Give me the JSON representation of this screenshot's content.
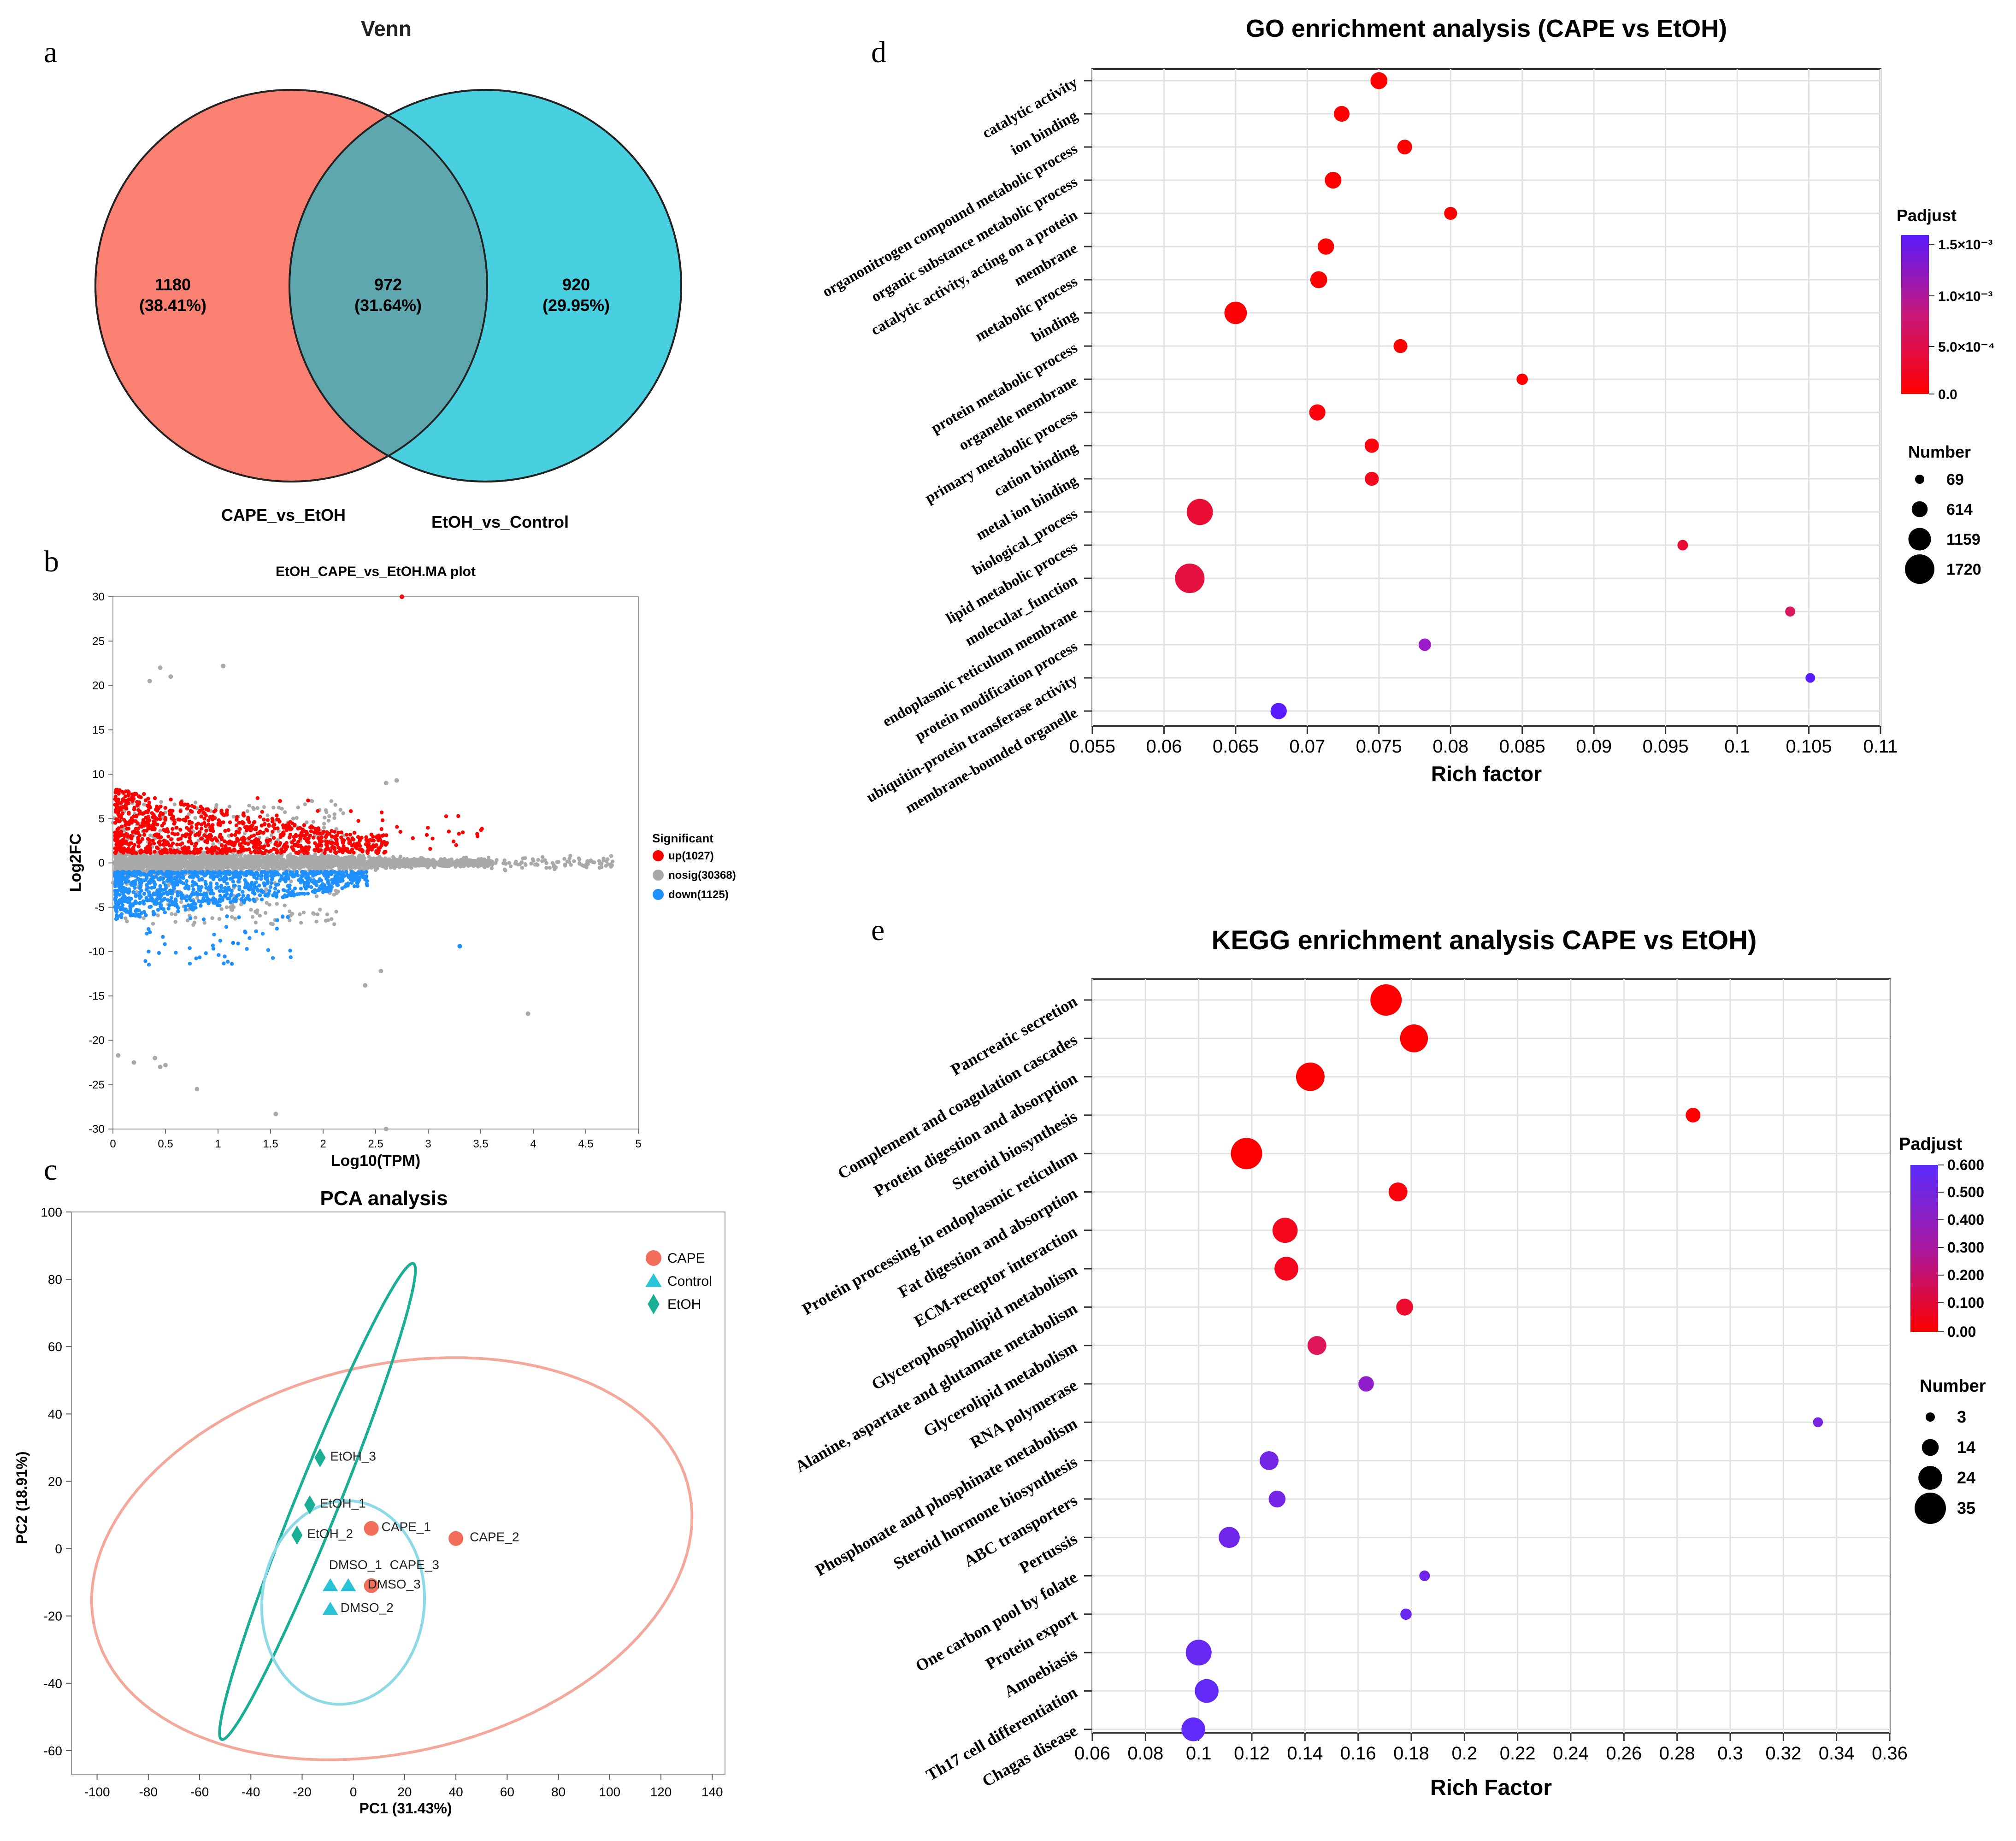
{
  "panels": {
    "a": "a",
    "b": "b",
    "c": "c",
    "d": "d",
    "e": "e"
  },
  "chart_data": [
    {
      "id": "venn",
      "type": "venn",
      "title": "Venn",
      "sets": [
        {
          "name": "CAPE_vs_EtOH",
          "color": "#FA8072"
        },
        {
          "name": "EtOH_vs_Control",
          "color": "#48CFE0"
        }
      ],
      "regions": [
        {
          "count": "1180",
          "percent": "(38.41%)"
        },
        {
          "count": "972",
          "percent": "(31.64%)"
        },
        {
          "count": "920",
          "percent": "(29.95%)"
        }
      ]
    },
    {
      "id": "ma",
      "type": "scatter",
      "title": "EtOH_CAPE_vs_EtOH.MA plot",
      "xlabel": "Log10(TPM)",
      "ylabel": "Log2FC",
      "xlim": [
        0,
        5
      ],
      "ylim": [
        -30,
        30
      ],
      "xticks": [
        "0",
        "0.5",
        "1",
        "1.5",
        "2",
        "2.5",
        "3",
        "3.5",
        "4",
        "4.5",
        "5"
      ],
      "yticks": [
        "30",
        "25",
        "20",
        "15",
        "10",
        "5",
        "0",
        "-5",
        "-10",
        "-15",
        "-20",
        "-25",
        "-30"
      ],
      "legend_title": "Significant",
      "legend": [
        {
          "label": "up(1027)",
          "color": "#FF0000"
        },
        {
          "label": "nosig(30368)",
          "color": "#A9A9A9"
        },
        {
          "label": "down(1125)",
          "color": "#1E90FF"
        }
      ],
      "outliers": [
        {
          "x": 2.75,
          "y": 30,
          "g": "up"
        },
        {
          "x": 0.45,
          "y": 22,
          "g": "nosig"
        },
        {
          "x": 0.55,
          "y": 21,
          "g": "nosig"
        },
        {
          "x": 0.35,
          "y": 20.5,
          "g": "nosig"
        },
        {
          "x": 1.05,
          "y": 22.2,
          "g": "nosig"
        },
        {
          "x": 0.05,
          "y": -21.7,
          "g": "nosig"
        },
        {
          "x": 0.2,
          "y": -22.5,
          "g": "nosig"
        },
        {
          "x": 0.45,
          "y": -23,
          "g": "nosig"
        },
        {
          "x": 0.4,
          "y": -22,
          "g": "nosig"
        },
        {
          "x": 0.5,
          "y": -22.8,
          "g": "nosig"
        },
        {
          "x": 0.8,
          "y": -25.5,
          "g": "nosig"
        },
        {
          "x": 1.55,
          "y": -28.3,
          "g": "nosig"
        },
        {
          "x": 2.6,
          "y": -30,
          "g": "nosig"
        },
        {
          "x": 3.95,
          "y": -17,
          "g": "nosig"
        },
        {
          "x": 2.55,
          "y": -12.2,
          "g": "nosig"
        },
        {
          "x": 2.4,
          "y": -13.8,
          "g": "nosig"
        },
        {
          "x": 2.7,
          "y": 9.3,
          "g": "nosig"
        },
        {
          "x": 2.6,
          "y": 9,
          "g": "nosig"
        },
        {
          "x": 3.3,
          "y": -9.4,
          "g": "down"
        }
      ]
    },
    {
      "id": "pca",
      "type": "scatter",
      "title": "PCA analysis",
      "xlabel": "PC1 (31.43%)",
      "ylabel": "PC2 (18.91%)",
      "xlim": [
        -110,
        145
      ],
      "ylim": [
        -67,
        100
      ],
      "xticks": [
        -100,
        -80,
        -60,
        -40,
        -20,
        0,
        20,
        40,
        60,
        80,
        100,
        120,
        140
      ],
      "yticks": [
        -60,
        -40,
        -20,
        0,
        20,
        40,
        60,
        80,
        100
      ],
      "legend": [
        {
          "label": "CAPE",
          "color": "#F26E5A",
          "shape": "circle"
        },
        {
          "label": "Control",
          "color": "#29C4D8",
          "shape": "triangle"
        },
        {
          "label": "EtOH",
          "color": "#1AAE94",
          "shape": "diamond"
        }
      ],
      "points": [
        {
          "label": "EtOH_3",
          "x": -13,
          "y": 27,
          "group": "EtOH"
        },
        {
          "label": "EtOH_1",
          "x": -17,
          "y": 13,
          "group": "EtOH"
        },
        {
          "label": "EtOH_2",
          "x": -22,
          "y": 4,
          "group": "EtOH"
        },
        {
          "label": "CAPE_1",
          "x": 7,
          "y": 6,
          "group": "CAPE"
        },
        {
          "label": "CAPE_2",
          "x": 40,
          "y": 3,
          "group": "CAPE"
        },
        {
          "label": "CAPE_3",
          "x": 7,
          "y": -11,
          "group": "CAPE"
        },
        {
          "label": "DMSO_1",
          "x": -9,
          "y": -11,
          "group": "Control"
        },
        {
          "label": "DMSO_3",
          "x": -2,
          "y": -11,
          "group": "Control"
        },
        {
          "label": "DMSO_2",
          "x": -9,
          "y": -18,
          "group": "Control"
        }
      ]
    },
    {
      "id": "go",
      "type": "scatter",
      "title": "GO enrichment analysis (CAPE vs EtOH)",
      "xlabel": "Rich factor",
      "xlim": [
        0.055,
        0.11
      ],
      "xticks": [
        "0.055",
        "0.06",
        "0.065",
        "0.07",
        "0.075",
        "0.08",
        "0.085",
        "0.09",
        "0.095",
        "0.1",
        "0.105",
        "0.11"
      ],
      "color_title": "Padjust",
      "color_ticks": [
        "1.5×10⁻³",
        "1.0×10⁻³",
        "5.0×10⁻⁴",
        "0.0"
      ],
      "size_title": "Number",
      "size_ticks": [
        "69",
        "614",
        "1159",
        "1720"
      ],
      "terms": [
        {
          "label": "catalytic activity",
          "x": 0.075,
          "n": 700,
          "p": 0.0
        },
        {
          "label": "ion binding",
          "x": 0.0724,
          "n": 600,
          "p": 0.0
        },
        {
          "label": "organonitrogen compound metabolic process",
          "x": 0.0768,
          "n": 520,
          "p": 0.0
        },
        {
          "label": "organic substance metabolic process",
          "x": 0.0718,
          "n": 680,
          "p": 0.0
        },
        {
          "label": "catalytic activity, acting on a protein",
          "x": 0.08,
          "n": 380,
          "p": 0.0
        },
        {
          "label": "membrane",
          "x": 0.0713,
          "n": 650,
          "p": 0.0
        },
        {
          "label": "metabolic process",
          "x": 0.0708,
          "n": 700,
          "p": 0.0
        },
        {
          "label": "binding",
          "x": 0.065,
          "n": 1150,
          "p": 4e-05
        },
        {
          "label": "protein metabolic process",
          "x": 0.0765,
          "n": 450,
          "p": 0.0
        },
        {
          "label": "organelle membrane",
          "x": 0.085,
          "n": 240,
          "p": 0.0
        },
        {
          "label": "primary metabolic process",
          "x": 0.0707,
          "n": 640,
          "p": 0.0001
        },
        {
          "label": "cation binding",
          "x": 0.0745,
          "n": 480,
          "p": 0.0001
        },
        {
          "label": "metal ion binding",
          "x": 0.0745,
          "n": 460,
          "p": 0.0002
        },
        {
          "label": "biological_process",
          "x": 0.0625,
          "n": 1450,
          "p": 0.0004
        },
        {
          "label": "lipid metabolic process",
          "x": 0.0962,
          "n": 180,
          "p": 0.0004
        },
        {
          "label": "molecular_function",
          "x": 0.0618,
          "n": 1720,
          "p": 0.0005
        },
        {
          "label": "endoplasmic reticulum membrane",
          "x": 0.1037,
          "n": 140,
          "p": 0.0007
        },
        {
          "label": "protein modification process",
          "x": 0.0782,
          "n": 330,
          "p": 0.0012
        },
        {
          "label": "ubiquitin-protein transferase activity",
          "x": 0.1051,
          "n": 110,
          "p": 0.0016
        },
        {
          "label": "membrane-bounded organelle",
          "x": 0.068,
          "n": 650,
          "p": 0.0016
        }
      ]
    },
    {
      "id": "kegg",
      "type": "scatter",
      "title": "KEGG enrichment analysis CAPE vs EtOH)",
      "xlabel": "Rich Factor",
      "xlim": [
        0.06,
        0.36
      ],
      "xticks": [
        "0.06",
        "0.08",
        "0.1",
        "0.12",
        "0.14",
        "0.16",
        "0.18",
        "0.2",
        "0.22",
        "0.24",
        "0.26",
        "0.28",
        "0.3",
        "0.32",
        "0.34",
        "0.36"
      ],
      "color_title": "Padjust",
      "color_ticks": [
        "0.600",
        "0.500",
        "0.400",
        "0.300",
        "0.200",
        "0.100",
        "0.00"
      ],
      "size_title": "Number",
      "size_ticks": [
        "3",
        "14",
        "24",
        "35"
      ],
      "terms": [
        {
          "label": "Pancreatic secretion",
          "x": 0.1705,
          "n": 35,
          "p": 0.0
        },
        {
          "label": "Complement and coagulation cascades",
          "x": 0.181,
          "n": 30,
          "p": 0.0
        },
        {
          "label": "Protein digestion and absorption",
          "x": 0.142,
          "n": 31,
          "p": 0.0
        },
        {
          "label": "Steroid biosynthesis",
          "x": 0.286,
          "n": 11,
          "p": 0.0
        },
        {
          "label": "Protein processing in endoplasmic reticulum",
          "x": 0.118,
          "n": 35,
          "p": 0.0
        },
        {
          "label": "Fat digestion and absorption",
          "x": 0.175,
          "n": 17,
          "p": 0.02
        },
        {
          "label": "ECM-receptor interaction",
          "x": 0.1325,
          "n": 26,
          "p": 0.05
        },
        {
          "label": "Glycerophospholipid metabolism",
          "x": 0.133,
          "n": 24,
          "p": 0.05
        },
        {
          "label": "Alanine, aspartate and glutamate metabolism",
          "x": 0.1775,
          "n": 14,
          "p": 0.08
        },
        {
          "label": "Glycerolipid metabolism",
          "x": 0.1445,
          "n": 17,
          "p": 0.15
        },
        {
          "label": "RNA polymerase",
          "x": 0.163,
          "n": 12,
          "p": 0.4
        },
        {
          "label": "Phosphonate and phosphinate metabolism",
          "x": 0.333,
          "n": 4,
          "p": 0.48
        },
        {
          "label": "Steroid hormone biosynthesis",
          "x": 0.1265,
          "n": 17,
          "p": 0.5
        },
        {
          "label": "ABC transporters",
          "x": 0.1295,
          "n": 14,
          "p": 0.5
        },
        {
          "label": "Pertussis",
          "x": 0.1115,
          "n": 20,
          "p": 0.52
        },
        {
          "label": "One carbon pool by folate",
          "x": 0.185,
          "n": 5,
          "p": 0.52
        },
        {
          "label": "Protein export",
          "x": 0.178,
          "n": 6,
          "p": 0.54
        },
        {
          "label": "Amoebiasis",
          "x": 0.1,
          "n": 27,
          "p": 0.55
        },
        {
          "label": "Th17 cell differentiation",
          "x": 0.103,
          "n": 24,
          "p": 0.57
        },
        {
          "label": "Chagas disease",
          "x": 0.098,
          "n": 24,
          "p": 0.58
        }
      ]
    }
  ]
}
